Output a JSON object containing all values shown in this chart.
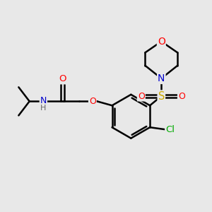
{
  "bg_color": "#e8e8e8",
  "bond_color": "#000000",
  "bond_lw": 1.8,
  "atom_colors": {
    "O": "#ff0000",
    "N": "#0000cc",
    "S": "#ccaa00",
    "Cl": "#00aa00",
    "C": "#000000",
    "H": "#666666"
  },
  "font_size": 8.5,
  "figsize": [
    3.0,
    3.0
  ],
  "dpi": 100
}
